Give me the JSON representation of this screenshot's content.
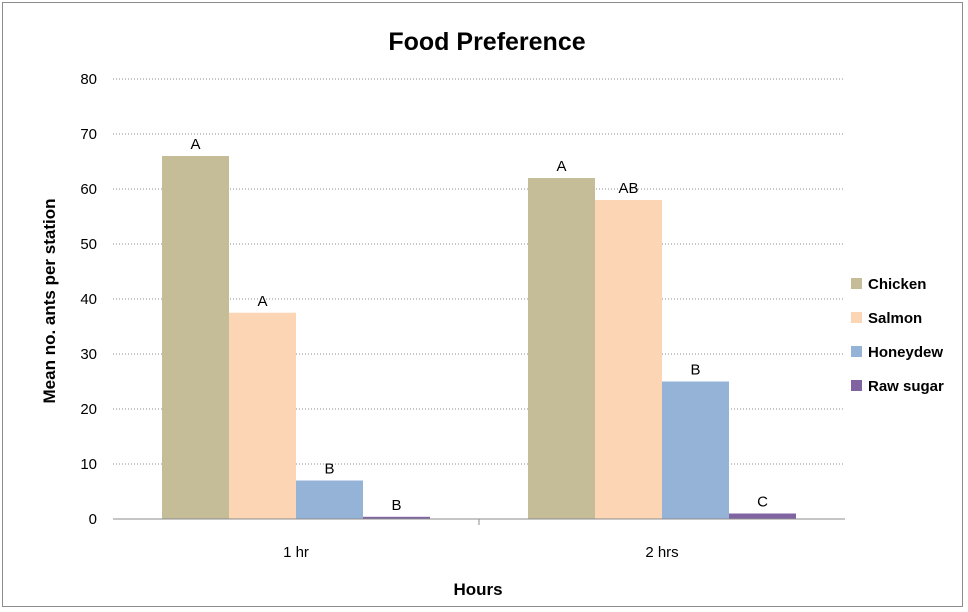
{
  "chart_data": {
    "type": "bar",
    "title": "Food Preference",
    "xlabel": "Hours",
    "ylabel": "Mean no. ants per station",
    "categories": [
      "1 hr",
      "2  hrs"
    ],
    "ylim": [
      0,
      80
    ],
    "yticks": [
      0,
      10,
      20,
      30,
      40,
      50,
      60,
      70,
      80
    ],
    "grid": "horizontal dotted",
    "legend_position": "right",
    "series": [
      {
        "name": "Chicken",
        "color": "#c4bd97",
        "values": [
          66,
          62
        ],
        "labels": [
          "A",
          "A"
        ]
      },
      {
        "name": "Salmon",
        "color": "#fcd5b5",
        "values": [
          37.5,
          58
        ],
        "labels": [
          "A",
          "AB"
        ]
      },
      {
        "name": "Honeydew",
        "color": "#95b3d7",
        "values": [
          7,
          25
        ],
        "labels": [
          "B",
          "B"
        ]
      },
      {
        "name": "Raw sugar",
        "color": "#8064a2",
        "values": [
          0.4,
          1
        ],
        "labels": [
          "B",
          "C"
        ]
      }
    ]
  }
}
